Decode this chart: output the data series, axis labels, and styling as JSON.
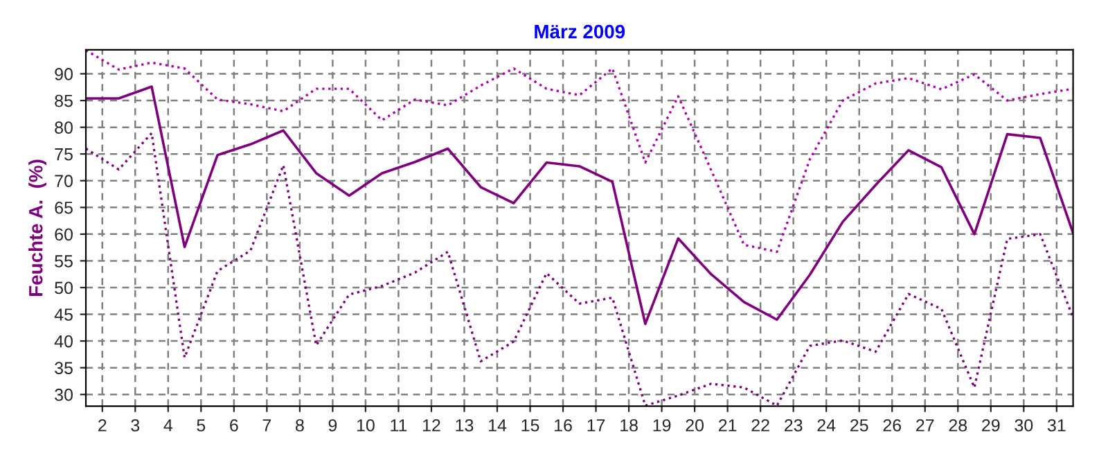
{
  "chart_data": {
    "type": "line",
    "title": "März 2009",
    "ylabel": "Feuchte A.  (%)",
    "x": [
      1.5,
      2.5,
      3.5,
      4.5,
      5.5,
      6.5,
      7.5,
      8.5,
      9.5,
      10.5,
      11.5,
      12.5,
      13.5,
      14.5,
      15.5,
      16.5,
      17.5,
      18.5,
      19.5,
      20.5,
      21.5,
      22.5,
      23.5,
      24.5,
      25.5,
      26.5,
      27.5,
      28.5,
      29.5,
      30.5,
      31.5
    ],
    "series": [
      {
        "color": "#b000b0",
        "line_style": "dotted",
        "values": [
          94.4,
          90.8,
          92.1,
          91,
          85.2,
          84.3,
          83,
          87.2,
          87.2,
          81.3,
          85.2,
          84.1,
          87.8,
          91,
          87.2,
          86,
          91,
          73.4,
          85.8,
          72,
          58,
          56.7,
          74,
          85,
          88.2,
          89.2,
          87.1,
          89.9,
          85,
          86.2,
          87.2
        ]
      },
      {
        "color": "#800080",
        "line_style": "solid",
        "values": [
          85.4,
          85.4,
          87.6,
          57.6,
          74.8,
          76.8,
          79.4,
          71.4,
          67.2,
          71.4,
          73.5,
          76,
          68.8,
          65.8,
          73.4,
          72.7,
          69.8,
          43.2,
          59.2,
          52.5,
          47.3,
          44,
          52.4,
          62.3,
          69.2,
          75.7,
          72.5,
          60,
          78.7,
          78,
          60.2
        ]
      },
      {
        "color": "#800080",
        "line_style": "dotted",
        "values": [
          76,
          72.1,
          78.9,
          36.9,
          53.1,
          56.9,
          72.9,
          39.2,
          48.7,
          50.3,
          52.8,
          56.7,
          36.2,
          39.9,
          52.7,
          47,
          48.1,
          27.9,
          29.8,
          32,
          31.3,
          27.9,
          39.1,
          40.1,
          38,
          48.8,
          46,
          31.3,
          59.1,
          60,
          44.4
        ]
      }
    ],
    "xlim": [
      1.5,
      31.5
    ],
    "xticks": [
      2,
      3,
      4,
      5,
      6,
      7,
      8,
      9,
      10,
      11,
      12,
      13,
      14,
      15,
      16,
      17,
      18,
      19,
      20,
      21,
      22,
      23,
      24,
      25,
      26,
      27,
      28,
      29,
      30,
      31
    ],
    "ylim": [
      27.8,
      94.5
    ],
    "yticks": [
      30,
      35,
      40,
      45,
      50,
      55,
      60,
      65,
      70,
      75,
      80,
      85,
      90
    ],
    "grid": true
  }
}
